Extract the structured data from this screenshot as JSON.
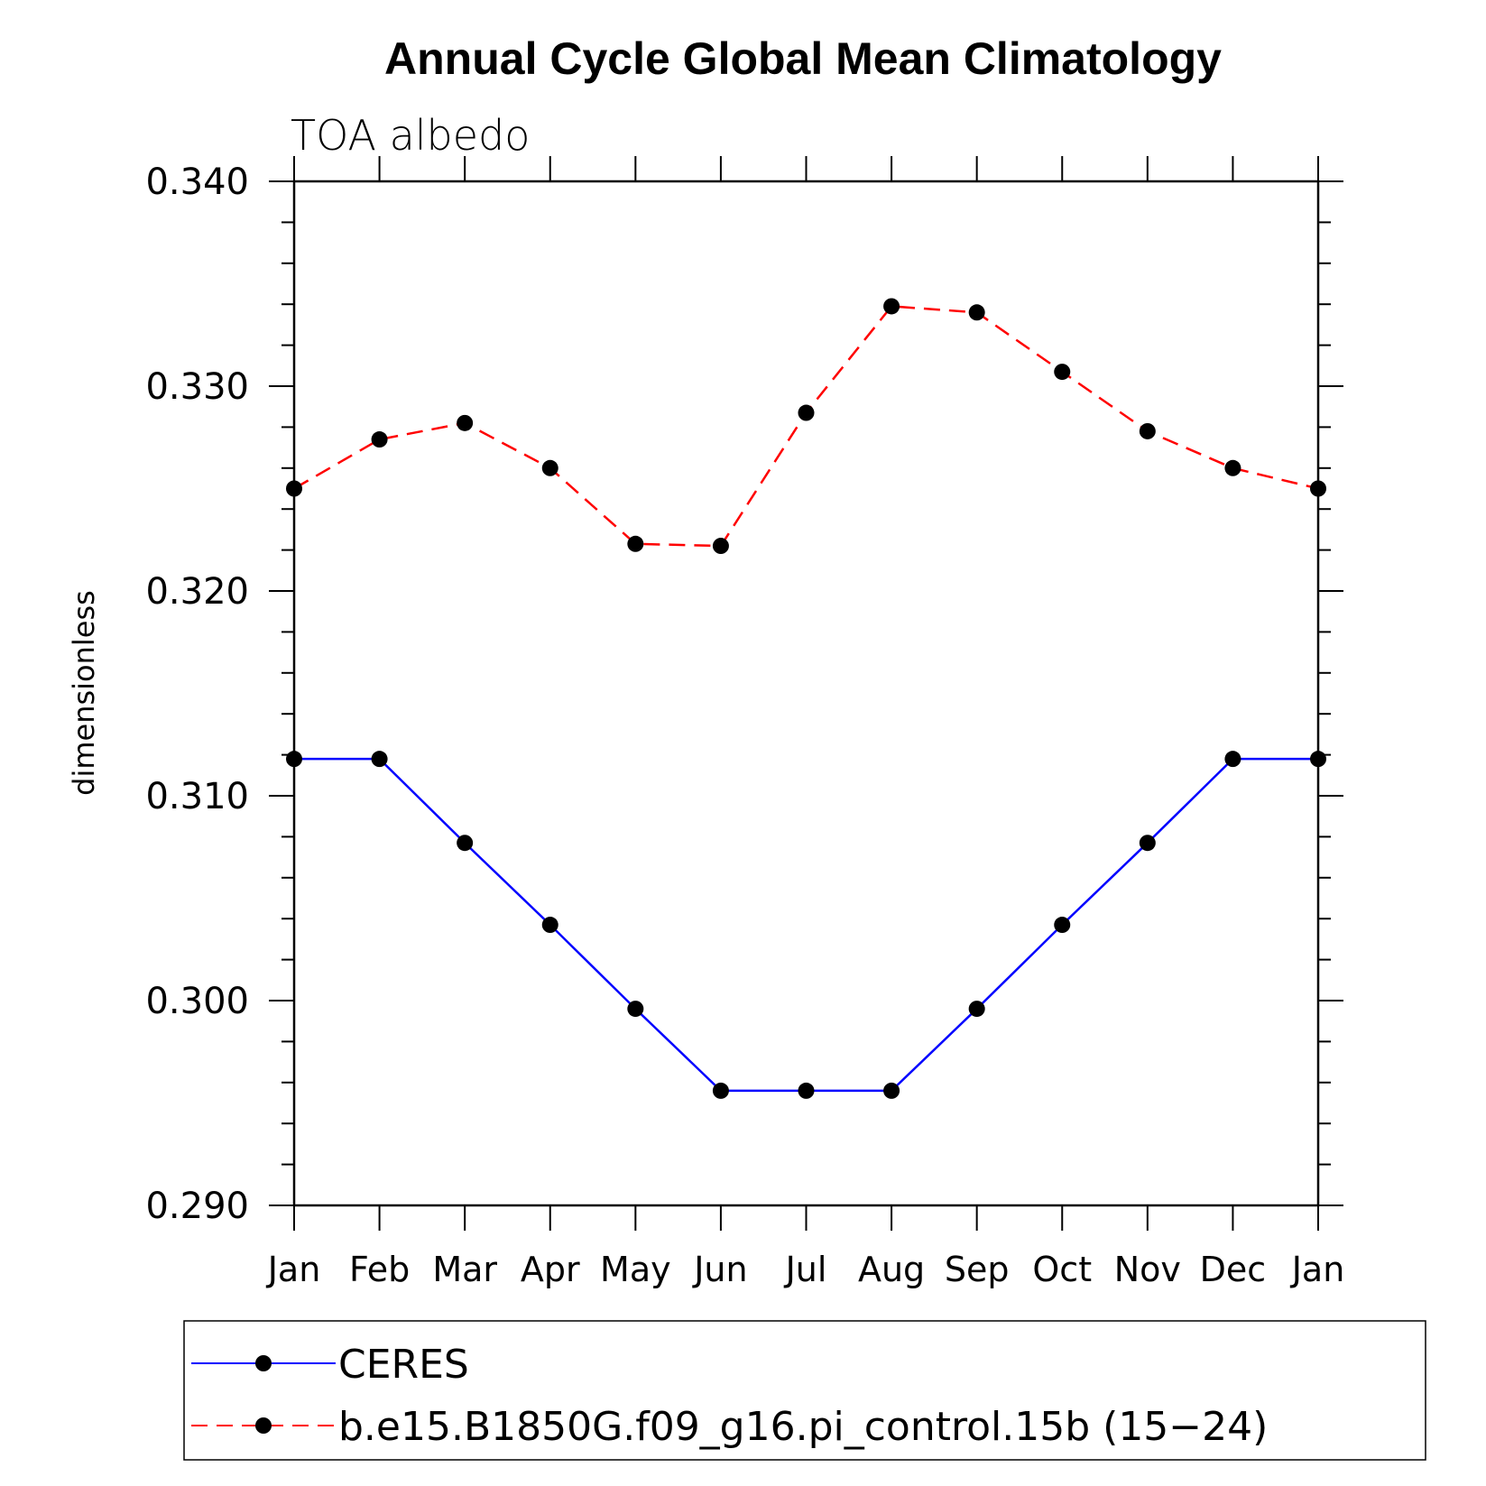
{
  "chart_data": {
    "type": "line",
    "title": "Annual Cycle Global Mean Climatology",
    "subtitle": "TOA albedo",
    "xlabel": "",
    "ylabel": "dimensionless",
    "categories": [
      "Jan",
      "Feb",
      "Mar",
      "Apr",
      "May",
      "Jun",
      "Jul",
      "Aug",
      "Sep",
      "Oct",
      "Nov",
      "Dec",
      "Jan"
    ],
    "ylim": [
      0.29,
      0.34
    ],
    "yticks": [
      "0.290",
      "0.300",
      "0.310",
      "0.320",
      "0.330",
      "0.340"
    ],
    "grid": false,
    "legend_position": "bottom",
    "series": [
      {
        "name": "CERES",
        "color": "#0000ff",
        "dash": "solid",
        "marker": "filled-circle",
        "values": [
          0.3118,
          0.3118,
          0.3077,
          0.3037,
          0.2996,
          0.2956,
          0.2956,
          0.2956,
          0.2996,
          0.3037,
          0.3077,
          0.3118,
          0.3118
        ]
      },
      {
        "name": "b.e15.B1850G.f09_g16.pi_control.15b (15−24)",
        "color": "#ff0000",
        "dash": "dashed",
        "marker": "filled-circle",
        "values": [
          0.325,
          0.3274,
          0.3282,
          0.326,
          0.3223,
          0.3222,
          0.3287,
          0.3339,
          0.3336,
          0.3307,
          0.3278,
          0.326,
          0.325
        ]
      }
    ]
  }
}
